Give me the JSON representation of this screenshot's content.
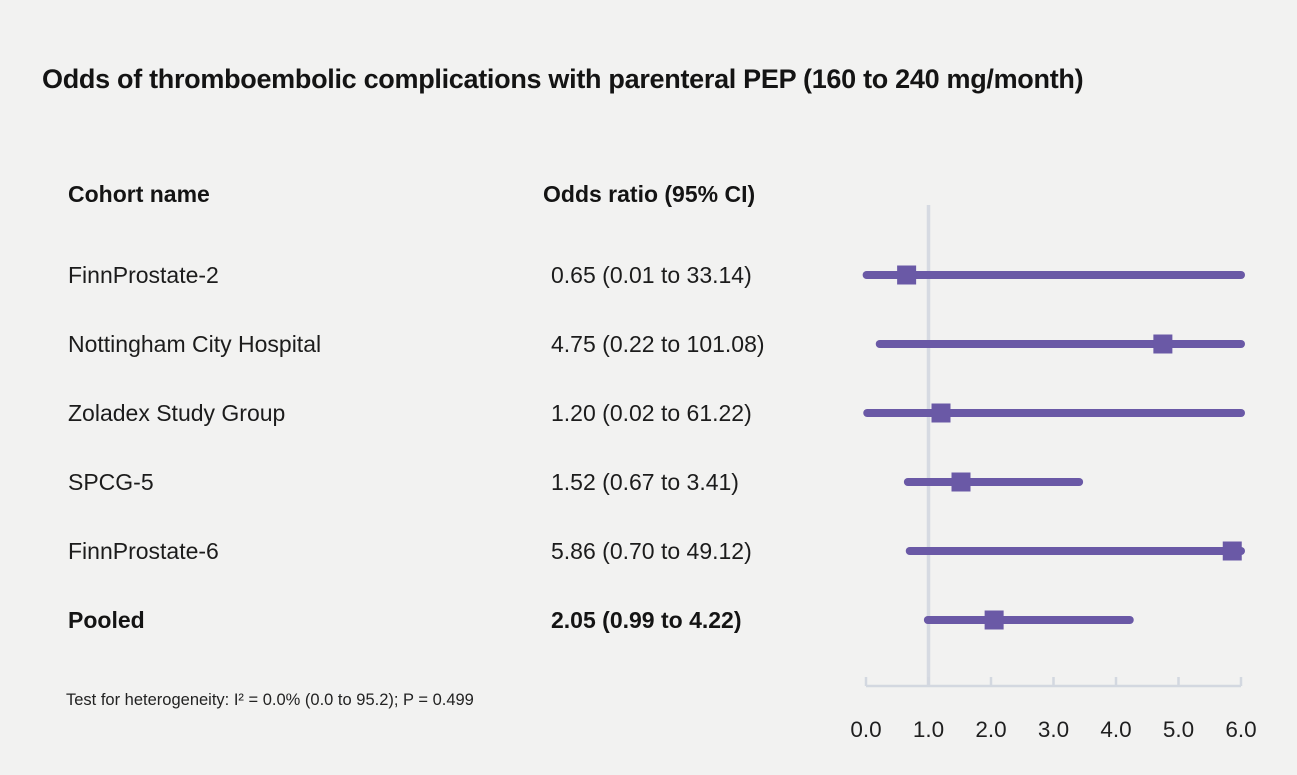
{
  "title": "Odds of thromboembolic complications with parenteral PEP (160 to 240 mg/month)",
  "columns": {
    "cohort": "Cohort name",
    "odds": "Odds ratio (95% CI)"
  },
  "footer": "Test for heterogeneity: I² = 0.0% (0.0 to 95.2); P = 0.499",
  "colors": {
    "background": "#f2f2f1",
    "series": "#6a59a6",
    "axis": "#d3d8e0",
    "reference_line": "#d6dae2",
    "text": "#1a1a1a"
  },
  "chart_data": {
    "type": "scatter",
    "variant": "forest-plot",
    "title": "Odds of thromboembolic complications with parenteral PEP (160 to 240 mg/month)",
    "xlabel": "",
    "ylabel": "",
    "xlim": [
      0,
      6
    ],
    "x_ticks": [
      0,
      1,
      2,
      3,
      4,
      5,
      6
    ],
    "x_tick_labels": [
      "0.0",
      "1.0",
      "2.0",
      "3.0",
      "4.0",
      "5.0",
      "6.0"
    ],
    "reference_line_x": 1.0,
    "grid": false,
    "legend": "none",
    "rows": [
      {
        "label": "FinnProstate-2",
        "or": 0.65,
        "ci_low": 0.01,
        "ci_high": 33.14,
        "text": "0.65 (0.01 to 33.14)",
        "bold": false
      },
      {
        "label": "Nottingham City Hospital",
        "or": 4.75,
        "ci_low": 0.22,
        "ci_high": 101.08,
        "text": "4.75 (0.22 to 101.08)",
        "bold": false
      },
      {
        "label": "Zoladex Study Group",
        "or": 1.2,
        "ci_low": 0.02,
        "ci_high": 61.22,
        "text": "1.20 (0.02 to 61.22)",
        "bold": false
      },
      {
        "label": "SPCG-5",
        "or": 1.52,
        "ci_low": 0.67,
        "ci_high": 3.41,
        "text": "1.52 (0.67 to 3.41)",
        "bold": false
      },
      {
        "label": "FinnProstate-6",
        "or": 5.86,
        "ci_low": 0.7,
        "ci_high": 49.12,
        "text": "5.86 (0.70 to 49.12)",
        "bold": false
      },
      {
        "label": "Pooled",
        "or": 2.05,
        "ci_low": 0.99,
        "ci_high": 4.22,
        "text": "2.05 (0.99 to 4.22)",
        "bold": true
      }
    ],
    "heterogeneity_note": "Test for heterogeneity: I² = 0.0% (0.0 to 95.2); P = 0.499"
  }
}
